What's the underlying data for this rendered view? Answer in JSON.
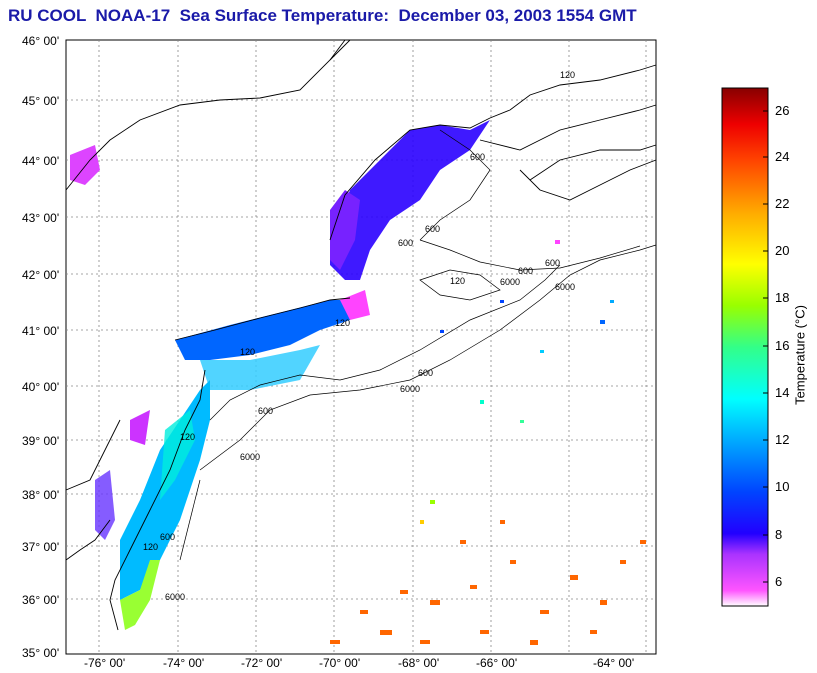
{
  "title": "RU COOL  NOAA-17  Sea Surface Temperature:  December 03, 2003 1554 GMT",
  "latitudes": [
    "46° 00'",
    "45° 00'",
    "44° 00'",
    "43° 00'",
    "42° 00'",
    "41° 00'",
    "40° 00'",
    "39° 00'",
    "38° 00'",
    "37° 00'",
    "36° 00'",
    "35° 00'"
  ],
  "longitudes": [
    "-76° 00'",
    "-74° 00'",
    "-72° 00'",
    "-70° 00'",
    "-68° 00'",
    "-66° 00'",
    "-64° 00'"
  ],
  "colorbar": {
    "label": "Temperature (°C)",
    "ticks": [
      "26",
      "24",
      "22",
      "20",
      "18",
      "16",
      "14",
      "12",
      "10",
      "8",
      "6"
    ],
    "range": [
      5,
      27
    ],
    "colors": [
      "#ffffff",
      "#ff66ff",
      "#cc33ff",
      "#5500ff",
      "#0000ff",
      "#0066ff",
      "#00aaff",
      "#00ffff",
      "#00ff88",
      "#66ff00",
      "#ffff00",
      "#ffaa00",
      "#ff5500",
      "#ff0000",
      "#cc0000",
      "#880000"
    ]
  },
  "contours": [
    "120",
    "600",
    "6000"
  ]
}
